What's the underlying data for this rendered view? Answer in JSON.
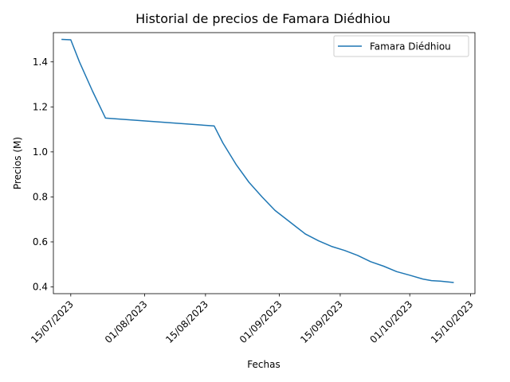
{
  "chart_data": {
    "type": "line",
    "title": "Historial de precios de Famara Diédhiou",
    "xlabel": "Fechas",
    "ylabel": "Precios (M)",
    "x_axis_type": "date",
    "x_range": [
      "2023-07-11",
      "2023-10-16"
    ],
    "xticks": [
      "2023-07-15",
      "2023-08-01",
      "2023-08-15",
      "2023-09-01",
      "2023-09-15",
      "2023-10-01",
      "2023-10-15"
    ],
    "xtick_labels": [
      "15/07/2023",
      "01/08/2023",
      "15/08/2023",
      "01/09/2023",
      "15/09/2023",
      "01/10/2023",
      "15/10/2023"
    ],
    "xtick_rotation": 45,
    "ylim": [
      0.37,
      1.53
    ],
    "yticks": [
      0.4,
      0.6,
      0.8,
      1.0,
      1.2,
      1.4
    ],
    "ytick_labels": [
      "0.4",
      "0.6",
      "0.8",
      "1.0",
      "1.2",
      "1.4"
    ],
    "grid": false,
    "legend_position": "top-right",
    "series": [
      {
        "name": "Famara Diédhiou",
        "color": "#1f77b4",
        "x": [
          "2023-07-13",
          "2023-07-15",
          "2023-07-17",
          "2023-07-20",
          "2023-07-23",
          "2023-08-17",
          "2023-08-19",
          "2023-08-22",
          "2023-08-25",
          "2023-08-28",
          "2023-08-31",
          "2023-09-03",
          "2023-09-05",
          "2023-09-07",
          "2023-09-10",
          "2023-09-13",
          "2023-09-16",
          "2023-09-19",
          "2023-09-22",
          "2023-09-25",
          "2023-09-28",
          "2023-10-01",
          "2023-10-04",
          "2023-10-06",
          "2023-10-08",
          "2023-10-11"
        ],
        "y": [
          1.5,
          1.498,
          1.4,
          1.27,
          1.15,
          1.115,
          1.04,
          0.945,
          0.865,
          0.8,
          0.74,
          0.695,
          0.665,
          0.635,
          0.605,
          0.58,
          0.562,
          0.54,
          0.512,
          0.492,
          0.468,
          0.452,
          0.435,
          0.428,
          0.426,
          0.42
        ]
      }
    ]
  }
}
